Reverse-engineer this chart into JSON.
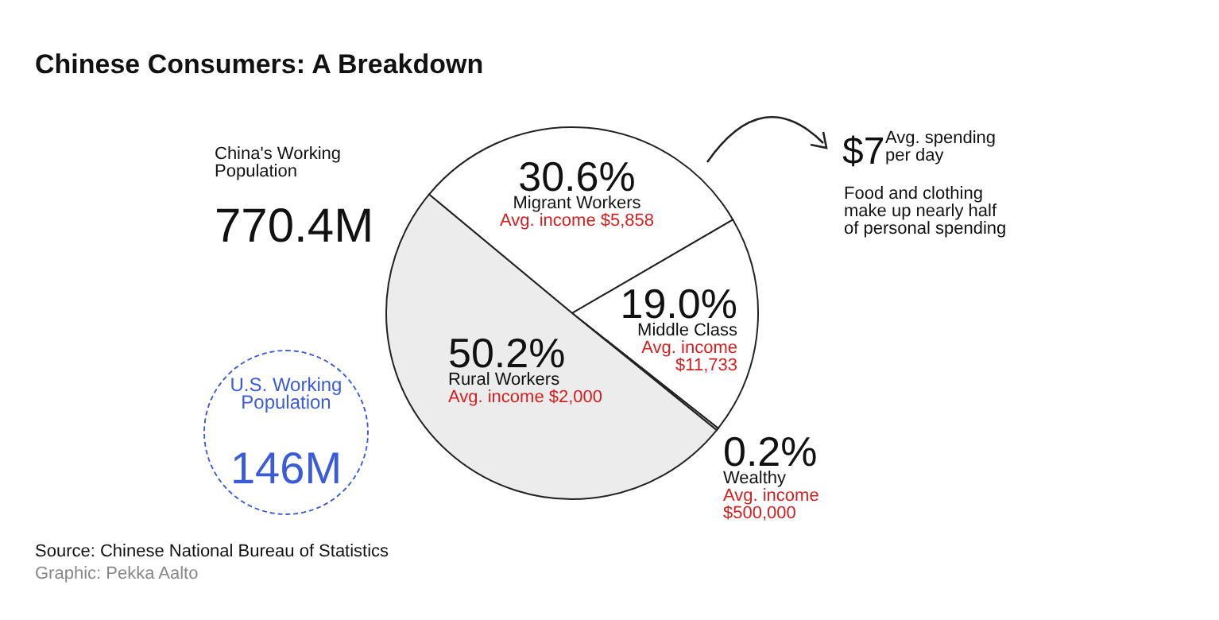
{
  "chart_data": {
    "type": "pie",
    "title": "Chinese Consumers: A Breakdown",
    "categories": [
      "Migrant Workers",
      "Middle Class",
      "Wealthy",
      "Rural Workers"
    ],
    "values": [
      30.6,
      19.0,
      0.2,
      50.2
    ],
    "colors": [
      "#ffffff",
      "#ffffff",
      "#ffffff",
      "#ececec"
    ],
    "value_labels": [
      "30.6%",
      "19.0%",
      "0.2%",
      "50.2%"
    ],
    "annotations": [
      "Avg. income $5,858",
      "Avg. income $11,733",
      "Avg. income $500,000",
      "Avg. income $2,000",
      "China's Working Population",
      "770.4M",
      "U.S. Working Population",
      "146M",
      "$7",
      "Avg. spending per day",
      "Food and clothing make up nearly half of personal spending",
      "Source: Chinese National Bureau of Statistics",
      "Graphic: Pekka Aalto"
    ]
  }
}
